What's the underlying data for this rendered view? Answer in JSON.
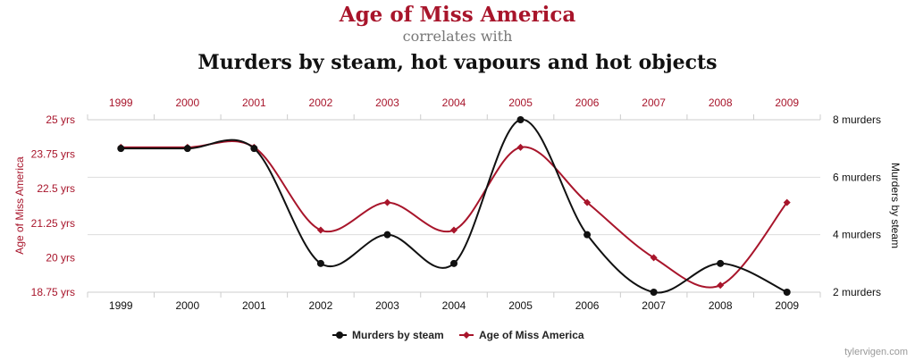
{
  "header": {
    "title_top": "Age of Miss America",
    "connector": "correlates with",
    "title_bottom": "Murders by steam, hot vapours and hot objects"
  },
  "watermark": "tylervigen.com",
  "colors": {
    "left": "#a8152b",
    "right": "#111111",
    "grid": "#dddddd"
  },
  "chart_data": {
    "type": "line",
    "x": [
      "1999",
      "2000",
      "2001",
      "2002",
      "2003",
      "2004",
      "2005",
      "2006",
      "2007",
      "2008",
      "2009"
    ],
    "left_axis": {
      "label": "Age of Miss America",
      "ylim": [
        18.75,
        25
      ],
      "ticks": [
        18.75,
        20,
        21.25,
        22.5,
        23.75,
        25
      ],
      "tick_labels": [
        "18.75 yrs",
        "20 yrs",
        "21.25 yrs",
        "22.5 yrs",
        "23.75 yrs",
        "25 yrs"
      ]
    },
    "right_axis": {
      "label": "Murders by steam",
      "ylim": [
        2,
        8
      ],
      "ticks": [
        2,
        4,
        6,
        8
      ],
      "tick_labels": [
        "2 murders",
        "4 murders",
        "6 murders",
        "8 murders"
      ]
    },
    "series": [
      {
        "name": "Murders by steam",
        "axis": "right",
        "color": "#111111",
        "marker": "circle",
        "values": [
          7,
          7,
          7,
          3,
          4,
          3,
          8,
          4,
          2,
          3,
          2
        ]
      },
      {
        "name": "Age of Miss America",
        "axis": "left",
        "color": "#a8152b",
        "marker": "diamond",
        "values": [
          24,
          24,
          24,
          21,
          22,
          21,
          24,
          22,
          20,
          19,
          22
        ]
      }
    ],
    "legend": "bottom-center"
  }
}
